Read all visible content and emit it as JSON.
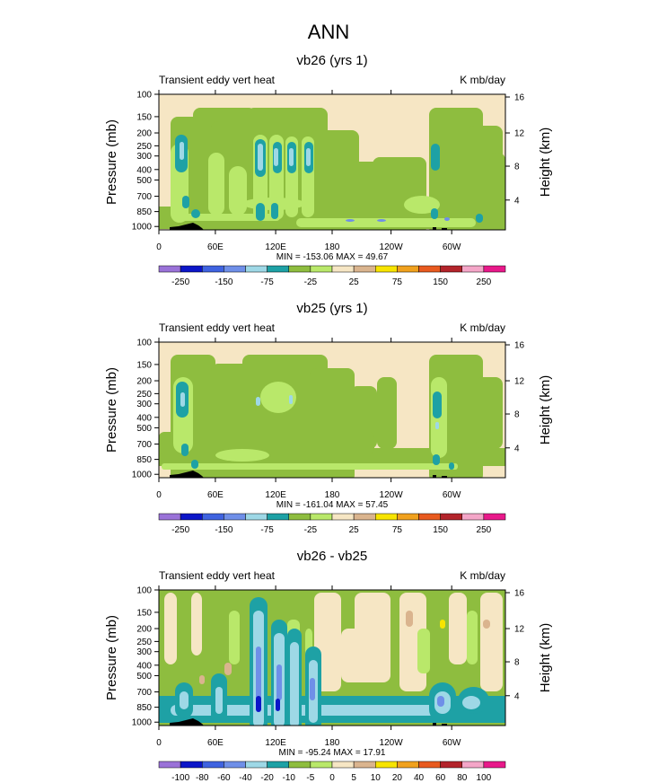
{
  "title": "ANN",
  "colors": {
    "background": "#f6e6c4",
    "green": "#8ebd3f",
    "lightgreen": "#b9e86a",
    "teal": "#1ea1a5",
    "lightblue": "#9ed8e6",
    "blue": "#6f8fe8",
    "darkblue": "#0c16c8",
    "tan": "#dab48e",
    "yellow": "#f7e400",
    "terrain": "#000000"
  },
  "chart_data": [
    {
      "type": "contour",
      "title": "vb26 (yrs 1)",
      "left_label": "Transient eddy vert heat",
      "right_label": "K mb/day",
      "ylabel": "Pressure (mb)",
      "ylabel_right": "Height (km)",
      "y_ticks": [
        "100",
        "150",
        "200",
        "250",
        "300",
        "400",
        "500",
        "700",
        "850",
        "1000"
      ],
      "y_right_ticks": [
        "16",
        "12",
        "8",
        "4"
      ],
      "x_ticks": [
        "0",
        "60E",
        "120E",
        "180",
        "120W",
        "60W"
      ],
      "stats": "MIN = -153.06  MAX =  49.67",
      "colorbar_labels": [
        "-250",
        "-150",
        "-75",
        "-25",
        "25",
        "75",
        "150",
        "250"
      ],
      "colorbar_colors": [
        "#9a72d8",
        "#0c16c8",
        "#3f63e0",
        "#6f8fe8",
        "#9ed8e6",
        "#1ea1a5",
        "#8ebd3f",
        "#b9e86a",
        "#f6e6c4",
        "#dab48e",
        "#f7e400",
        "#f0a11e",
        "#e85a1f",
        "#b3242b",
        "#f4a6c8",
        "#e8198a"
      ]
    },
    {
      "type": "contour",
      "title": "vb25 (yrs 1)",
      "left_label": "Transient eddy vert heat",
      "right_label": "K mb/day",
      "ylabel": "Pressure (mb)",
      "ylabel_right": "Height (km)",
      "y_ticks": [
        "100",
        "150",
        "200",
        "250",
        "300",
        "400",
        "500",
        "700",
        "850",
        "1000"
      ],
      "y_right_ticks": [
        "16",
        "12",
        "8",
        "4"
      ],
      "x_ticks": [
        "0",
        "60E",
        "120E",
        "180",
        "120W",
        "60W"
      ],
      "stats": "MIN = -161.04  MAX =  57.45",
      "colorbar_labels": [
        "-250",
        "-150",
        "-75",
        "-25",
        "25",
        "75",
        "150",
        "250"
      ],
      "colorbar_colors": [
        "#9a72d8",
        "#0c16c8",
        "#3f63e0",
        "#6f8fe8",
        "#9ed8e6",
        "#1ea1a5",
        "#8ebd3f",
        "#b9e86a",
        "#f6e6c4",
        "#dab48e",
        "#f7e400",
        "#f0a11e",
        "#e85a1f",
        "#b3242b",
        "#f4a6c8",
        "#e8198a"
      ]
    },
    {
      "type": "contour",
      "title": "vb26 - vb25",
      "left_label": "Transient eddy vert heat",
      "right_label": "K mb/day",
      "ylabel": "Pressure (mb)",
      "ylabel_right": "Height (km)",
      "y_ticks": [
        "100",
        "150",
        "200",
        "250",
        "300",
        "400",
        "500",
        "700",
        "850",
        "1000"
      ],
      "y_right_ticks": [
        "16",
        "12",
        "8",
        "4"
      ],
      "x_ticks": [
        "0",
        "60E",
        "120E",
        "180",
        "120W",
        "60W"
      ],
      "stats": "MIN = -95.24  MAX =  17.91",
      "colorbar_labels": [
        "-100",
        "-80",
        "-60",
        "-40",
        "-20",
        "-10",
        "-5",
        "0",
        "5",
        "10",
        "20",
        "40",
        "60",
        "80",
        "100"
      ],
      "colorbar_colors": [
        "#9a72d8",
        "#0c16c8",
        "#3f63e0",
        "#6f8fe8",
        "#9ed8e6",
        "#1ea1a5",
        "#8ebd3f",
        "#b9e86a",
        "#f6e6c4",
        "#dab48e",
        "#f7e400",
        "#f0a11e",
        "#e85a1f",
        "#b3242b",
        "#f4a6c8",
        "#e8198a"
      ]
    }
  ]
}
